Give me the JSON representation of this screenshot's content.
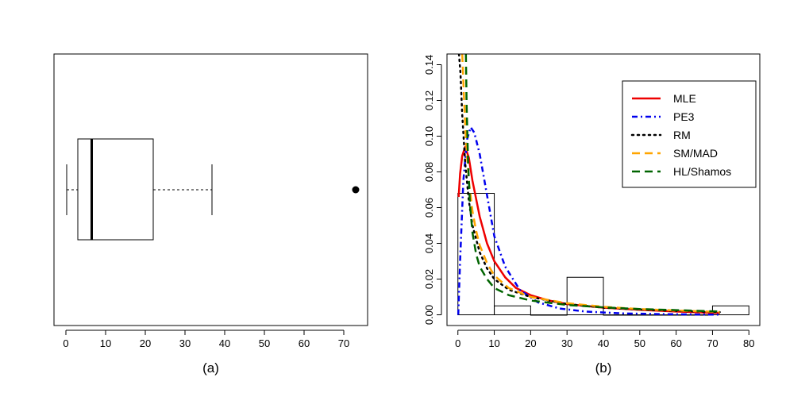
{
  "chart_data": [
    {
      "type": "boxplot",
      "panel_label": "(a)",
      "orientation": "horizontal",
      "xlim": [
        -3,
        76
      ],
      "xticks": [
        0,
        10,
        20,
        30,
        40,
        50,
        60,
        70
      ],
      "stats": {
        "whisker_low": 0.2,
        "q1": 3,
        "median": 6.5,
        "q3": 22,
        "whisker_high": 36.8
      },
      "outliers": [
        73
      ]
    },
    {
      "type": "histogram+line",
      "panel_label": "(b)",
      "xlim": [
        -3,
        83
      ],
      "ylim": [
        -0.006,
        0.146
      ],
      "xticks": [
        0,
        10,
        20,
        30,
        40,
        50,
        60,
        70,
        80
      ],
      "yticks": [
        "0.00",
        "0.02",
        "0.04",
        "0.06",
        "0.08",
        "0.10",
        "0.12",
        "0.14"
      ],
      "yticks_values": [
        0,
        0.02,
        0.04,
        0.06,
        0.08,
        0.1,
        0.12,
        0.14
      ],
      "histogram": {
        "bins": [
          [
            0,
            10
          ],
          [
            10,
            20
          ],
          [
            20,
            30
          ],
          [
            30,
            40
          ],
          [
            40,
            50
          ],
          [
            50,
            60
          ],
          [
            60,
            70
          ],
          [
            70,
            80
          ]
        ],
        "density": [
          0.068,
          0.005,
          0,
          0.021,
          0,
          0,
          0,
          0.005
        ]
      },
      "series": [
        {
          "name": "MLE",
          "color": "#ee0000",
          "dash": "solid",
          "x": [
            0.2,
            0.6,
            1.2,
            2,
            3,
            4,
            6,
            8,
            10,
            13,
            16,
            20,
            25,
            30,
            40,
            50,
            60,
            72
          ],
          "y": [
            0.066,
            0.079,
            0.089,
            0.094,
            0.088,
            0.075,
            0.055,
            0.04,
            0.03,
            0.021,
            0.015,
            0.011,
            0.008,
            0.006,
            0.004,
            0.0028,
            0.0018,
            0.001
          ]
        },
        {
          "name": "PE3",
          "color": "#0000ee",
          "dash": "dotdash",
          "x": [
            0.1,
            0.6,
            1.5,
            2.5,
            3.5,
            4.5,
            6,
            8,
            10,
            13,
            17,
            22,
            28,
            35,
            45,
            55,
            65,
            72
          ],
          "y": [
            0.0,
            0.03,
            0.075,
            0.098,
            0.105,
            0.102,
            0.09,
            0.067,
            0.044,
            0.027,
            0.014,
            0.007,
            0.0035,
            0.0018,
            0.0008,
            0.0004,
            0.0002,
            0.0001
          ]
        },
        {
          "name": "RM",
          "color": "#000000",
          "dash": "dotted",
          "x": [
            0.3,
            0.7,
            1.2,
            2,
            3,
            4,
            6,
            8,
            10,
            14,
            20,
            30,
            40,
            50,
            60,
            72
          ],
          "y": [
            0.146,
            0.135,
            0.112,
            0.085,
            0.064,
            0.05,
            0.035,
            0.026,
            0.02,
            0.014,
            0.01,
            0.006,
            0.004,
            0.003,
            0.0022,
            0.0015
          ]
        },
        {
          "name": "SM/MAD",
          "color": "#ffa500",
          "dash": "dashed",
          "x": [
            1.2,
            1.6,
            2.2,
            3,
            4,
            5,
            6,
            8,
            10,
            14,
            20,
            30,
            40,
            50,
            60,
            72
          ],
          "y": [
            0.146,
            0.125,
            0.098,
            0.075,
            0.058,
            0.047,
            0.039,
            0.029,
            0.022,
            0.015,
            0.01,
            0.0065,
            0.0045,
            0.0032,
            0.0024,
            0.0016
          ]
        },
        {
          "name": "HL/Shamos",
          "color": "#006400",
          "dash": "dashed",
          "x": [
            2.2,
            2.4,
            2.8,
            3.3,
            4,
            5,
            6,
            8,
            10,
            14,
            20,
            30,
            40,
            50,
            60,
            72
          ],
          "y": [
            0.146,
            0.118,
            0.085,
            0.062,
            0.046,
            0.034,
            0.027,
            0.02,
            0.015,
            0.011,
            0.008,
            0.0055,
            0.0042,
            0.0032,
            0.0026,
            0.0018
          ]
        }
      ],
      "legend_position": "top-right"
    }
  ]
}
